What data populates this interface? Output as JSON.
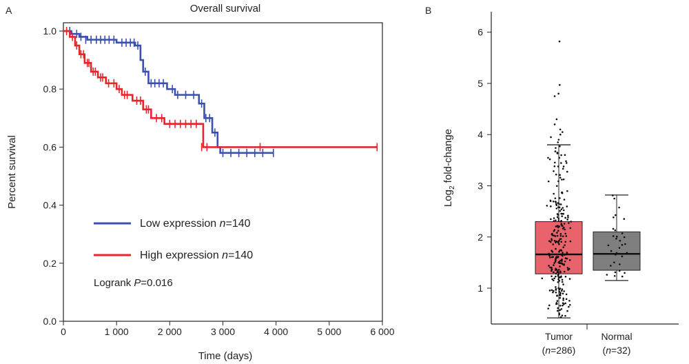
{
  "chart_data": [
    {
      "panel": "A",
      "type": "line",
      "title": "Overall survival",
      "xlabel": "Time (days)",
      "ylabel": "Percent survival",
      "xlim": [
        0,
        6000
      ],
      "ylim": [
        0,
        1.0
      ],
      "xticks": [
        0,
        1000,
        2000,
        3000,
        4000,
        5000,
        6000
      ],
      "xtick_labels": [
        "0",
        "1 000",
        "2 000",
        "3 000",
        "4 000",
        "5 000",
        "6 000"
      ],
      "yticks": [
        0.0,
        0.2,
        0.4,
        0.6,
        0.8,
        1.0
      ],
      "ytick_labels": [
        "0.0",
        "0.2",
        "0.4",
        "0.6",
        "0.8",
        "1.0"
      ],
      "grid": false,
      "legend_position": "center-left",
      "legend": [
        {
          "text": "Low expression ",
          "n_label": "n",
          "n_value": "=140",
          "color": "#3a4fb0"
        },
        {
          "text": "High expression ",
          "n_label": "n",
          "n_value": "=140",
          "color": "#e8242b"
        }
      ],
      "annotation": {
        "prefix": "Logrank ",
        "p_label": "P",
        "p_value": "=0.016"
      },
      "series": [
        {
          "color": "#3a4fb0",
          "steps": [
            [
              0,
              1.0
            ],
            [
              150,
              0.99
            ],
            [
              300,
              0.98
            ],
            [
              450,
              0.97
            ],
            [
              1000,
              0.96
            ],
            [
              1350,
              0.95
            ],
            [
              1450,
              0.9
            ],
            [
              1500,
              0.86
            ],
            [
              1600,
              0.82
            ],
            [
              1950,
              0.8
            ],
            [
              2100,
              0.78
            ],
            [
              2550,
              0.75
            ],
            [
              2650,
              0.7
            ],
            [
              2800,
              0.65
            ],
            [
              2900,
              0.6
            ],
            [
              2950,
              0.58
            ],
            [
              3950,
              0.58
            ]
          ],
          "censors": [
            [
              120,
              1.0
            ],
            [
              250,
              0.99
            ],
            [
              330,
              0.98
            ],
            [
              420,
              0.97
            ],
            [
              520,
              0.97
            ],
            [
              620,
              0.97
            ],
            [
              700,
              0.97
            ],
            [
              780,
              0.97
            ],
            [
              860,
              0.97
            ],
            [
              950,
              0.97
            ],
            [
              1100,
              0.96
            ],
            [
              1180,
              0.96
            ],
            [
              1260,
              0.96
            ],
            [
              1330,
              0.96
            ],
            [
              1400,
              0.95
            ],
            [
              1540,
              0.86
            ],
            [
              1650,
              0.82
            ],
            [
              1720,
              0.82
            ],
            [
              1800,
              0.82
            ],
            [
              1880,
              0.82
            ],
            [
              2050,
              0.8
            ],
            [
              2150,
              0.78
            ],
            [
              2300,
              0.78
            ],
            [
              2450,
              0.78
            ],
            [
              2600,
              0.75
            ],
            [
              2680,
              0.7
            ],
            [
              2750,
              0.7
            ],
            [
              2850,
              0.65
            ],
            [
              3000,
              0.58
            ],
            [
              3150,
              0.58
            ],
            [
              3300,
              0.58
            ],
            [
              3450,
              0.58
            ],
            [
              3600,
              0.58
            ],
            [
              3750,
              0.58
            ],
            [
              3950,
              0.58
            ]
          ]
        },
        {
          "color": "#e8242b",
          "steps": [
            [
              0,
              1.0
            ],
            [
              120,
              0.98
            ],
            [
              220,
              0.95
            ],
            [
              300,
              0.92
            ],
            [
              400,
              0.89
            ],
            [
              520,
              0.86
            ],
            [
              650,
              0.84
            ],
            [
              800,
              0.82
            ],
            [
              1000,
              0.8
            ],
            [
              1100,
              0.78
            ],
            [
              1300,
              0.76
            ],
            [
              1500,
              0.73
            ],
            [
              1650,
              0.7
            ],
            [
              1900,
              0.68
            ],
            [
              2600,
              0.68
            ],
            [
              2630,
              0.6
            ],
            [
              5900,
              0.6
            ]
          ],
          "censors": [
            [
              60,
              1.0
            ],
            [
              170,
              0.98
            ],
            [
              250,
              0.95
            ],
            [
              330,
              0.92
            ],
            [
              380,
              0.92
            ],
            [
              450,
              0.89
            ],
            [
              480,
              0.89
            ],
            [
              560,
              0.86
            ],
            [
              600,
              0.86
            ],
            [
              700,
              0.84
            ],
            [
              740,
              0.84
            ],
            [
              850,
              0.82
            ],
            [
              950,
              0.82
            ],
            [
              1050,
              0.8
            ],
            [
              1150,
              0.78
            ],
            [
              1200,
              0.78
            ],
            [
              1380,
              0.76
            ],
            [
              1450,
              0.76
            ],
            [
              1560,
              0.73
            ],
            [
              1600,
              0.73
            ],
            [
              1750,
              0.7
            ],
            [
              1850,
              0.7
            ],
            [
              2000,
              0.68
            ],
            [
              2100,
              0.68
            ],
            [
              2200,
              0.68
            ],
            [
              2300,
              0.68
            ],
            [
              2400,
              0.68
            ],
            [
              2500,
              0.68
            ],
            [
              2600,
              0.6
            ],
            [
              2700,
              0.6
            ],
            [
              3700,
              0.6
            ],
            [
              5900,
              0.6
            ]
          ]
        }
      ]
    },
    {
      "panel": "B",
      "type": "box",
      "title": "",
      "xlabel": "",
      "ylabel_parts": {
        "base": "Log",
        "sub": "2",
        "rest": " fold-change"
      },
      "ylim": [
        0.3,
        6.4
      ],
      "yticks": [
        1,
        2,
        3,
        4,
        5,
        6
      ],
      "ytick_labels": [
        "1",
        "2",
        "3",
        "4",
        "5",
        "6"
      ],
      "grid": false,
      "groups": [
        {
          "name": "Tumor",
          "n_open": "(",
          "n_label": "n",
          "n_value": "=286)",
          "color": "#e8636c",
          "whisker_low": 0.42,
          "q1": 1.28,
          "median": 1.66,
          "q3": 2.3,
          "whisker_high": 3.8,
          "outliers": [
            3.85,
            3.9,
            3.95,
            4.0,
            4.05,
            4.1,
            4.2,
            4.3,
            4.75,
            4.8,
            4.97,
            5.82
          ]
        },
        {
          "name": "Normal",
          "n_open": "(",
          "n_label": "n",
          "n_value": "=32)",
          "color": "#7f7f7f",
          "whisker_low": 1.15,
          "q1": 1.35,
          "median": 1.67,
          "q3": 2.1,
          "whisker_high": 2.82,
          "outliers": []
        }
      ]
    }
  ]
}
